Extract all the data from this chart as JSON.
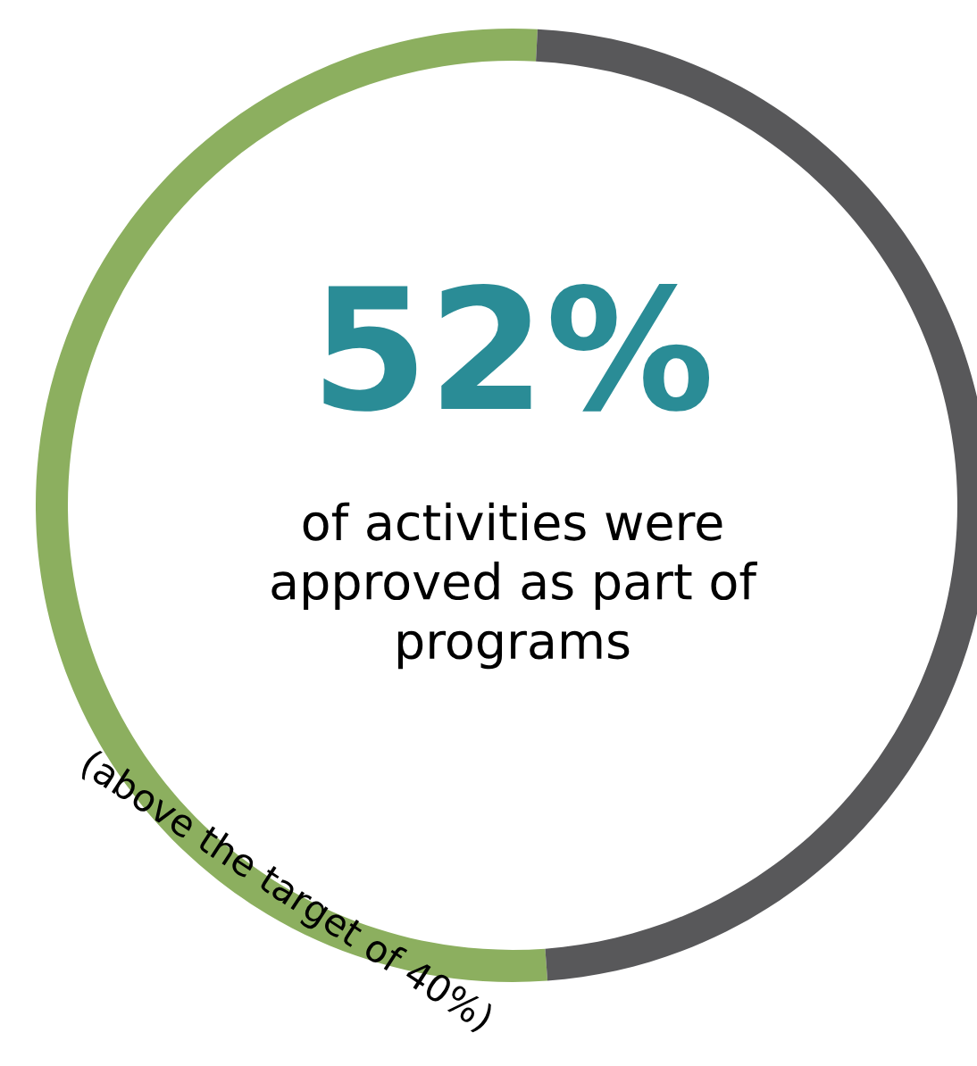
{
  "chart_data": {
    "type": "donut",
    "categories": [
      null,
      null
    ],
    "values": [
      52,
      48
    ],
    "colors": [
      "#8caf5f",
      "#58585a"
    ],
    "value_labels": [
      "52%",
      null
    ],
    "annotations": [
      "of activities were approved as part of programs",
      "(above the target of 40%)"
    ]
  }
}
